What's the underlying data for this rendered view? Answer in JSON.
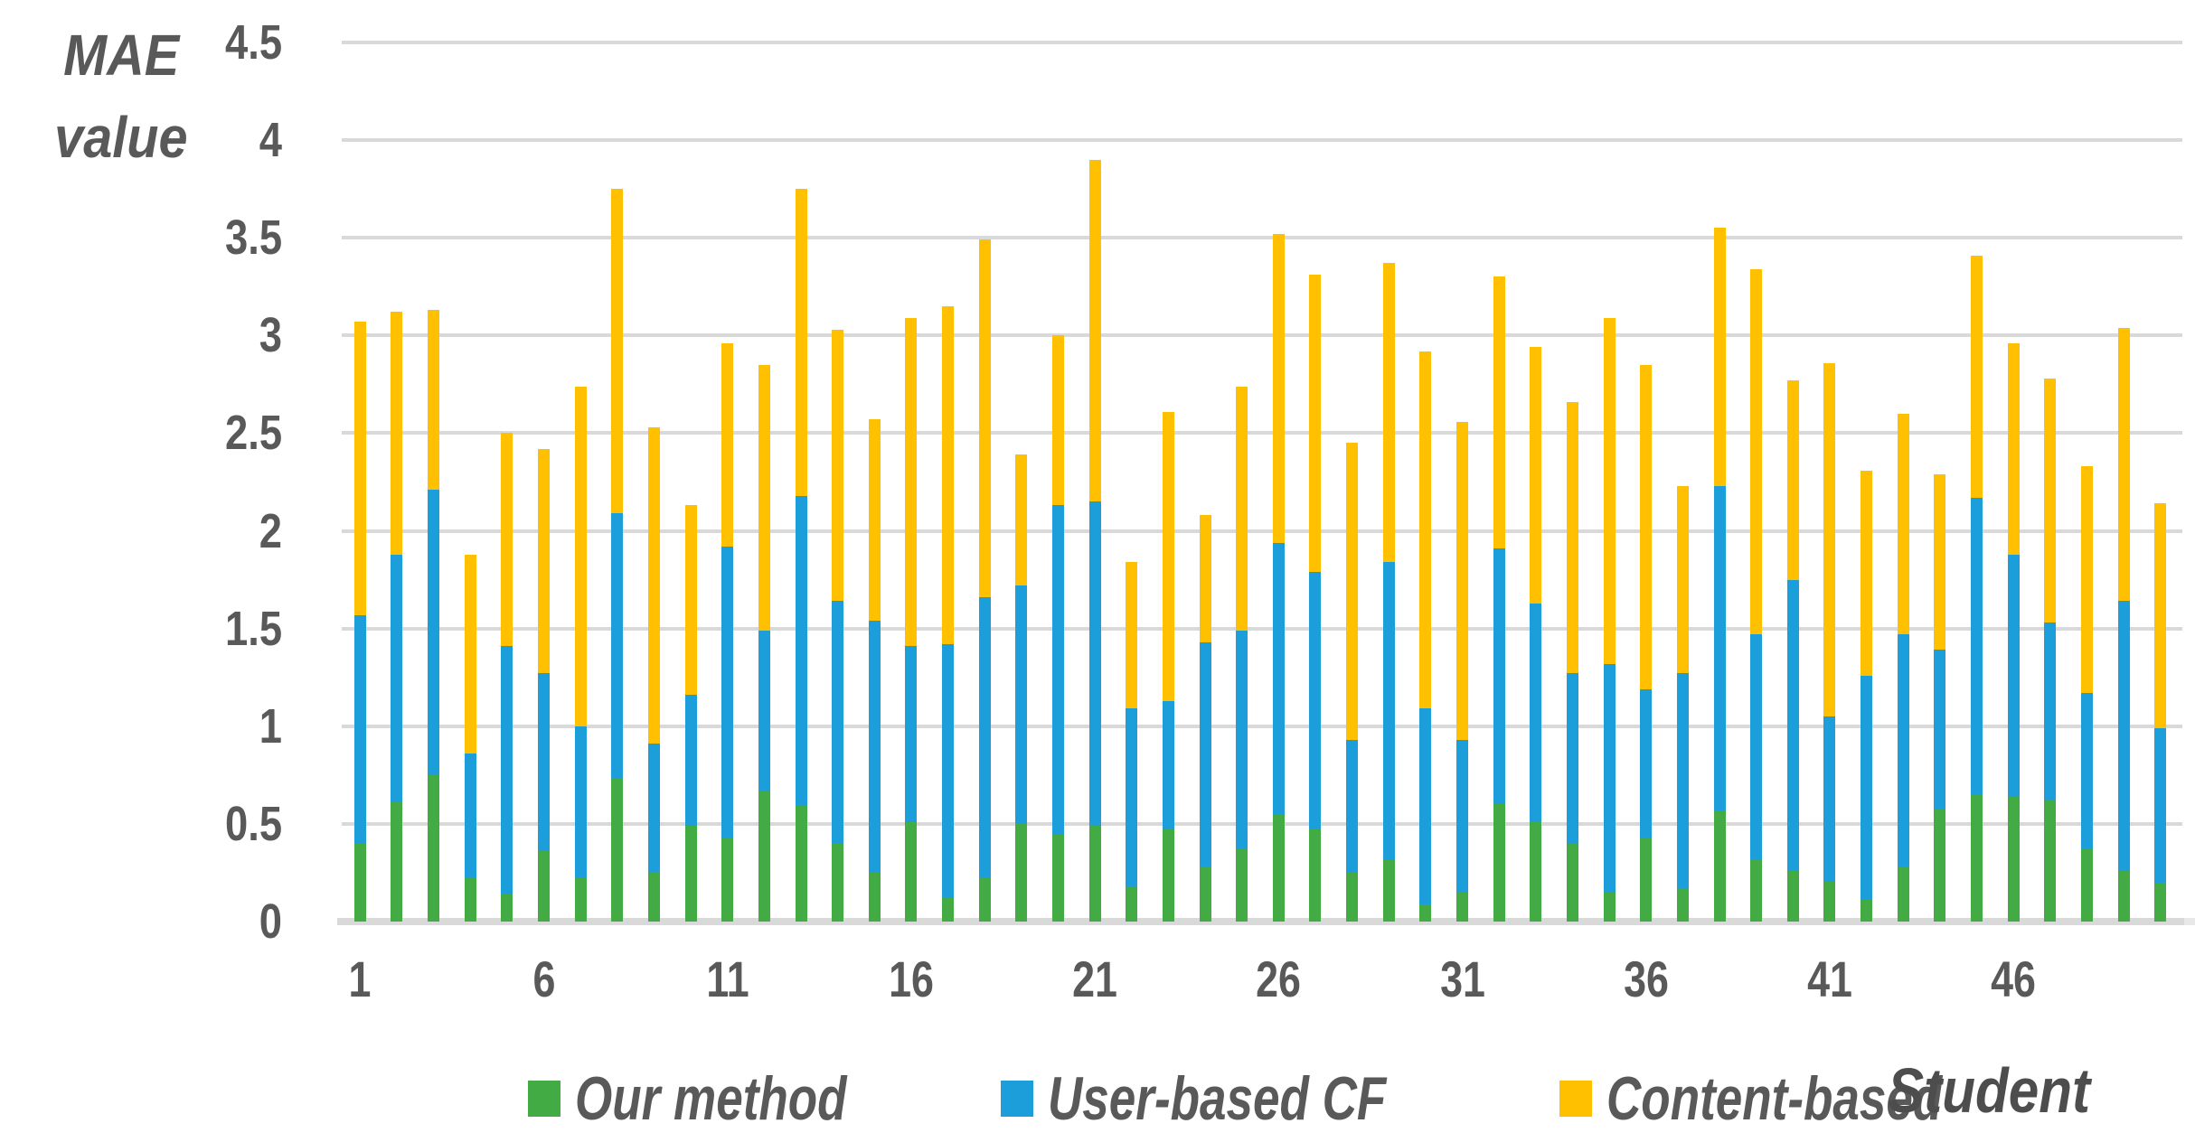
{
  "y_axis": {
    "title_line1": "MAE",
    "title_line2": "value",
    "ticks": [
      {
        "value": 0,
        "label": "0"
      },
      {
        "value": 0.5,
        "label": "0.5"
      },
      {
        "value": 1,
        "label": "1"
      },
      {
        "value": 1.5,
        "label": "1.5"
      },
      {
        "value": 2,
        "label": "2"
      },
      {
        "value": 2.5,
        "label": "2.5"
      },
      {
        "value": 3,
        "label": "3"
      },
      {
        "value": 3.5,
        "label": "3.5"
      },
      {
        "value": 4,
        "label": "4"
      },
      {
        "value": 4.5,
        "label": "4.5"
      }
    ]
  },
  "x_axis": {
    "title": "Student",
    "ticks": [
      {
        "slot": 1,
        "label": "1"
      },
      {
        "slot": 6,
        "label": "6"
      },
      {
        "slot": 11,
        "label": "11"
      },
      {
        "slot": 16,
        "label": "16"
      },
      {
        "slot": 21,
        "label": "21"
      },
      {
        "slot": 26,
        "label": "26"
      },
      {
        "slot": 31,
        "label": "31"
      },
      {
        "slot": 36,
        "label": "36"
      },
      {
        "slot": 41,
        "label": "41"
      },
      {
        "slot": 46,
        "label": "46"
      }
    ]
  },
  "legend": {
    "items": [
      {
        "key": "our-method",
        "label": "Our method",
        "color": "#43ab43"
      },
      {
        "key": "user-based-cf",
        "label": "User-based CF",
        "color": "#1b9ed9"
      },
      {
        "key": "content-based",
        "label": "Content-based",
        "color": "#ffc000"
      }
    ]
  },
  "colors": {
    "gridline": "#d9d9d9",
    "axis_line": "#d9d9d9",
    "axis_text": "#595959"
  },
  "chart_data": {
    "type": "bar",
    "stacked": true,
    "title": "",
    "xlabel": "Student",
    "ylabel": "MAE value",
    "ylim": [
      0,
      4.5
    ],
    "ytick_interval": 0.5,
    "grid": true,
    "legend_position": "bottom",
    "x": [
      1,
      2,
      3,
      4,
      5,
      6,
      7,
      8,
      9,
      10,
      11,
      12,
      13,
      14,
      15,
      16,
      17,
      18,
      19,
      20,
      21,
      22,
      23,
      24,
      25,
      26,
      27,
      28,
      29,
      30,
      31,
      32,
      33,
      34,
      35,
      36,
      37,
      38,
      39,
      40,
      41,
      42,
      43,
      44,
      45,
      46,
      47,
      48,
      49,
      50
    ],
    "xtick_labels": [
      1,
      6,
      11,
      16,
      21,
      26,
      31,
      36,
      41,
      46
    ],
    "series": [
      {
        "name": "Our method",
        "key": "our-method",
        "color": "#43ab43",
        "values": [
          0.4,
          0.61,
          0.75,
          0.22,
          0.14,
          0.36,
          0.22,
          0.73,
          0.25,
          0.49,
          0.43,
          0.67,
          0.59,
          0.4,
          0.25,
          0.51,
          0.12,
          0.22,
          0.5,
          0.45,
          0.49,
          0.18,
          0.47,
          0.28,
          0.37,
          0.55,
          0.47,
          0.25,
          0.32,
          0.09,
          0.15,
          0.6,
          0.51,
          0.4,
          0.15,
          0.43,
          0.17,
          0.57,
          0.32,
          0.26,
          0.21,
          0.11,
          0.28,
          0.58,
          0.65,
          0.64,
          0.62,
          0.37,
          0.26,
          0.2
        ]
      },
      {
        "name": "User-based CF",
        "key": "user-based-cf",
        "color": "#1b9ed9",
        "values": [
          1.17,
          1.27,
          1.46,
          0.64,
          1.27,
          0.91,
          0.78,
          1.36,
          0.66,
          0.67,
          1.49,
          0.82,
          1.59,
          1.24,
          1.29,
          0.9,
          1.3,
          1.44,
          1.22,
          1.68,
          1.66,
          0.91,
          0.66,
          1.15,
          1.12,
          1.39,
          1.32,
          0.68,
          1.52,
          1.0,
          0.78,
          1.31,
          1.12,
          0.87,
          1.17,
          0.76,
          1.1,
          1.66,
          1.15,
          1.49,
          0.84,
          1.15,
          1.19,
          0.81,
          1.52,
          1.24,
          0.91,
          0.8,
          1.38,
          0.79
        ]
      },
      {
        "name": "Content-based",
        "key": "content-based",
        "color": "#ffc000",
        "values": [
          1.5,
          1.24,
          0.92,
          1.02,
          1.09,
          1.15,
          1.74,
          1.66,
          1.62,
          0.97,
          1.04,
          1.36,
          1.57,
          1.39,
          1.03,
          1.68,
          1.73,
          1.83,
          0.67,
          0.87,
          1.75,
          0.75,
          1.48,
          0.65,
          1.25,
          1.58,
          1.52,
          1.52,
          1.53,
          1.83,
          1.63,
          1.39,
          1.31,
          1.39,
          1.77,
          1.66,
          0.96,
          1.32,
          1.87,
          1.02,
          1.81,
          1.05,
          1.13,
          0.9,
          1.24,
          1.08,
          1.25,
          1.16,
          1.4,
          1.15
        ]
      }
    ]
  }
}
